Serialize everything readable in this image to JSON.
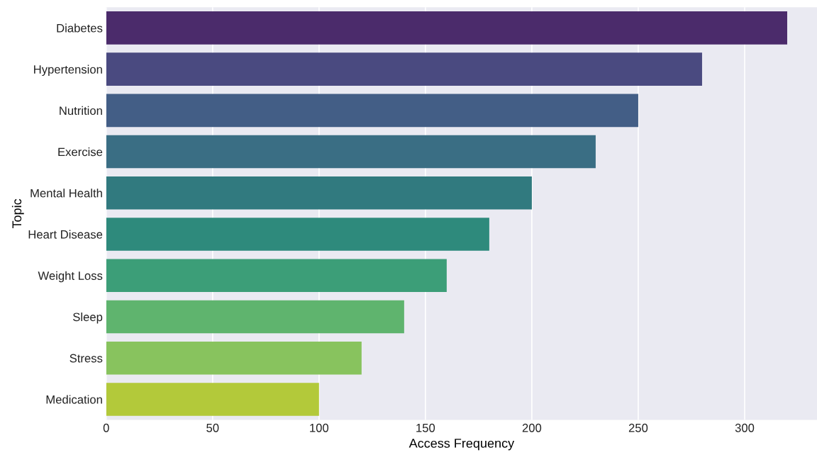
{
  "chart_data": {
    "type": "bar",
    "orientation": "horizontal",
    "xlabel": "Access Frequency",
    "ylabel": "Topic",
    "categories": [
      "Diabetes",
      "Hypertension",
      "Nutrition",
      "Exercise",
      "Mental Health",
      "Heart Disease",
      "Weight Loss",
      "Sleep",
      "Stress",
      "Medication"
    ],
    "values": [
      320,
      280,
      250,
      230,
      200,
      180,
      160,
      140,
      120,
      100
    ],
    "colors": [
      "#4b2b6b",
      "#4a4a80",
      "#435e86",
      "#3a6e84",
      "#317a7f",
      "#2e8a7c",
      "#3c9e78",
      "#5fb46e",
      "#88c35e",
      "#b3c93a"
    ],
    "xlim": [
      0,
      334
    ],
    "xticks": [
      0,
      50,
      100,
      150,
      200,
      250,
      300
    ],
    "grid": "x",
    "legend": false
  }
}
